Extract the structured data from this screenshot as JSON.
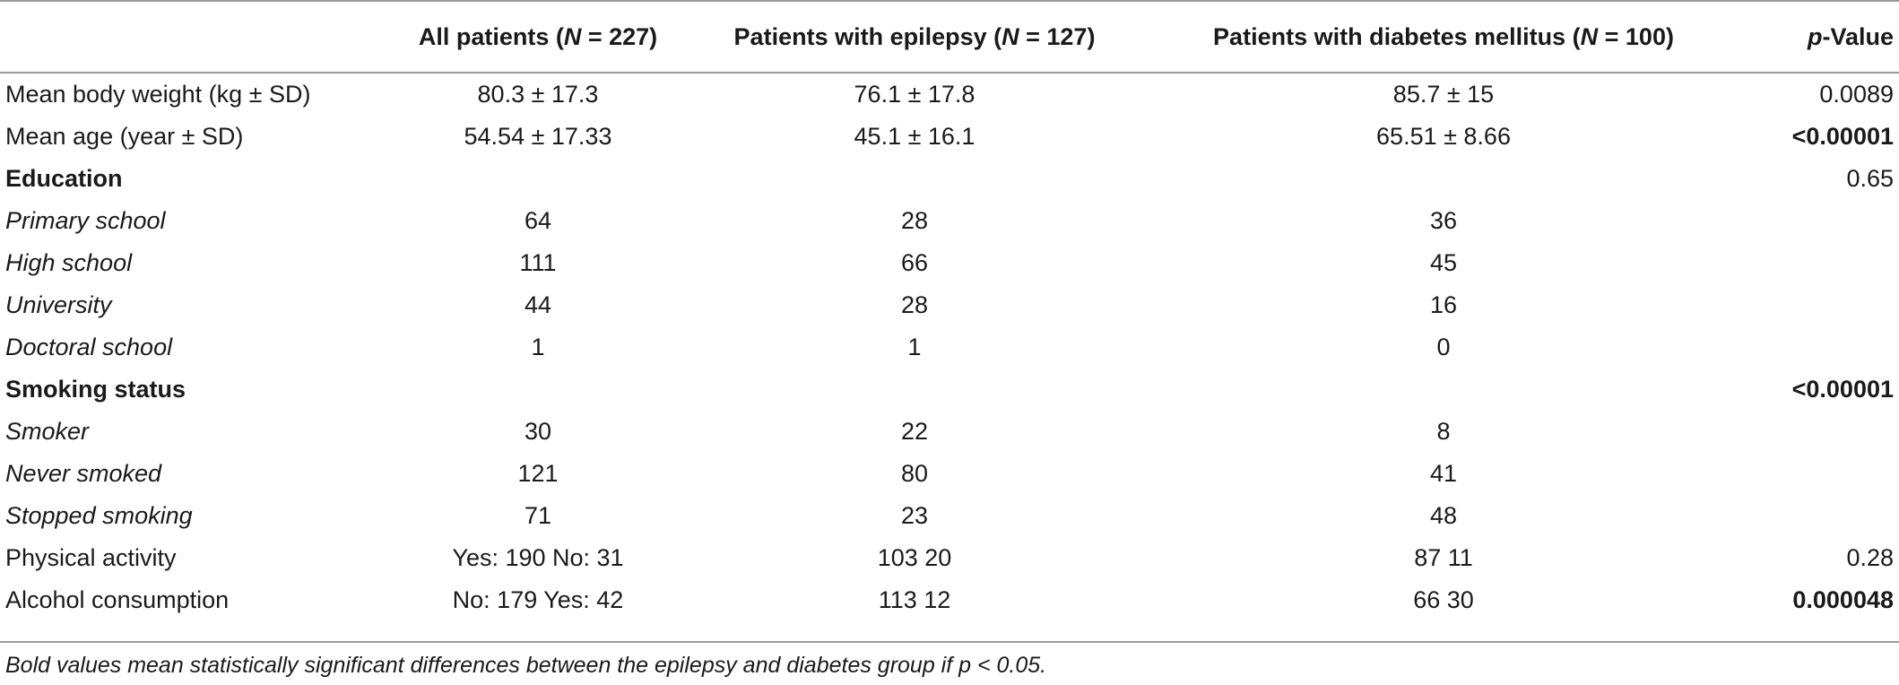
{
  "header": {
    "col0": "",
    "col1_prefix": "All patients (",
    "col1_n": "N",
    "col1_suffix": " = 227)",
    "col2_prefix": "Patients with epilepsy (",
    "col2_n": "N",
    "col2_suffix": " = 127)",
    "col3_prefix": "Patients with diabetes mellitus (",
    "col3_n": "N",
    "col3_suffix": " = 100)",
    "col4_p": "p",
    "col4_suffix": "-Value"
  },
  "rows": [
    {
      "label": "Mean body weight (kg ± SD)",
      "all": "80.3 ± 17.3",
      "epilepsy": "76.1 ± 17.8",
      "diabetes": "85.7 ± 15",
      "p": "0.0089"
    },
    {
      "label": "Mean age (year ± SD)",
      "all": "54.54 ± 17.33",
      "epilepsy": "45.1 ± 16.1",
      "diabetes": "65.51 ± 8.66",
      "p": "<0.00001"
    },
    {
      "label": "Education",
      "all": "",
      "epilepsy": "",
      "diabetes": "",
      "p": "0.65"
    },
    {
      "label": "Primary school",
      "all": "64",
      "epilepsy": "28",
      "diabetes": "36",
      "p": ""
    },
    {
      "label": "High school",
      "all": "111",
      "epilepsy": "66",
      "diabetes": "45",
      "p": ""
    },
    {
      "label": "University",
      "all": "44",
      "epilepsy": "28",
      "diabetes": "16",
      "p": ""
    },
    {
      "label": "Doctoral school",
      "all": "1",
      "epilepsy": "1",
      "diabetes": "0",
      "p": ""
    },
    {
      "label": "Smoking status",
      "all": "",
      "epilepsy": "",
      "diabetes": "",
      "p": "<0.00001"
    },
    {
      "label": "Smoker",
      "all": "30",
      "epilepsy": "22",
      "diabetes": "8",
      "p": ""
    },
    {
      "label": "Never smoked",
      "all": "121",
      "epilepsy": "80",
      "diabetes": "41",
      "p": ""
    },
    {
      "label": "Stopped smoking",
      "all": "71",
      "epilepsy": "23",
      "diabetes": "48",
      "p": ""
    },
    {
      "label": "Physical activity",
      "all": "Yes: 190 No: 31",
      "epilepsy": "103 20",
      "diabetes": "87 11",
      "p": "0.28"
    },
    {
      "label": "Alcohol consumption",
      "all": "No: 179 Yes: 42",
      "epilepsy": "113 12",
      "diabetes": "66 30",
      "p": "0.000048"
    }
  ],
  "footnote": "Bold values mean statistically significant differences between the epilepsy and diabetes group if p < 0.05."
}
